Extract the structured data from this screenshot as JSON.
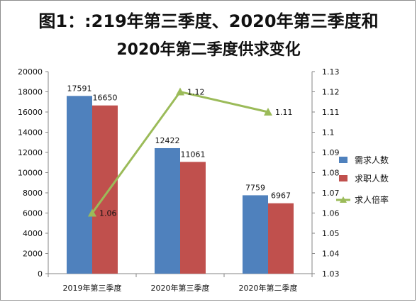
{
  "title_line1": "图1：:219年第三季度、2020年第三季度和",
  "title_line2": "2020年第二季度供求变化",
  "colors": {
    "bar1": "#4f81bd",
    "bar2": "#c0504d",
    "line": "#9bbb59",
    "axis": "#868686",
    "text": "#111111"
  },
  "chart_data": {
    "type": "bar",
    "categories": [
      "2019年第三季度",
      "2020年第三季度",
      "2020年第二季度"
    ],
    "series": [
      {
        "name": "需求人数",
        "type": "bar",
        "axis": "left",
        "values": [
          17591,
          12422,
          7759
        ]
      },
      {
        "name": "求职人数",
        "type": "bar",
        "axis": "left",
        "values": [
          16650,
          11061,
          6967
        ]
      },
      {
        "name": "求人倍率",
        "type": "line",
        "axis": "right",
        "values": [
          1.06,
          1.12,
          1.11
        ]
      }
    ],
    "data_labels": {
      "需求人数": [
        "17591",
        "12422",
        "7759"
      ],
      "求职人数": [
        "16650",
        "11061",
        "6967"
      ],
      "求人倍率": [
        "1.06",
        "1.12",
        "1.11"
      ]
    },
    "y_left": {
      "min": 0,
      "max": 20000,
      "step": 2000,
      "ticks": [
        "0",
        "2000",
        "4000",
        "6000",
        "8000",
        "10000",
        "12000",
        "14000",
        "16000",
        "18000",
        "20000"
      ]
    },
    "y_right": {
      "min": 1.03,
      "max": 1.13,
      "step": 0.01,
      "ticks": [
        "1.03",
        "1.04",
        "1.05",
        "1.06",
        "1.07",
        "1.08",
        "1.09",
        "1.1",
        "1.11",
        "1.12",
        "1.13"
      ]
    },
    "grid": false,
    "legend_position": "right"
  }
}
